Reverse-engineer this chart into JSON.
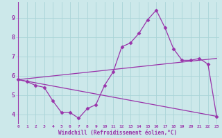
{
  "xlabel": "Windchill (Refroidissement éolien,°C)",
  "bg_color": "#cce8ea",
  "line_color": "#9933aa",
  "x_data": [
    0,
    1,
    2,
    3,
    4,
    5,
    6,
    7,
    8,
    9,
    10,
    11,
    12,
    13,
    14,
    15,
    16,
    17,
    18,
    19,
    20,
    21,
    22,
    23
  ],
  "y_main": [
    5.8,
    5.7,
    5.5,
    5.4,
    4.7,
    4.1,
    4.1,
    3.8,
    4.3,
    4.5,
    5.5,
    6.2,
    7.5,
    7.7,
    8.2,
    8.9,
    9.4,
    8.5,
    7.4,
    6.8,
    6.8,
    6.9,
    6.6,
    3.9
  ],
  "y_down_start": 5.8,
  "y_down_end": 3.9,
  "y_up_start": 5.8,
  "y_up_end": 6.9,
  "ylim": [
    3.5,
    9.8
  ],
  "xlim": [
    -0.3,
    23.3
  ],
  "yticks": [
    4,
    5,
    6,
    7,
    8,
    9
  ],
  "xticks": [
    0,
    1,
    2,
    3,
    4,
    5,
    6,
    7,
    8,
    9,
    10,
    11,
    12,
    13,
    14,
    15,
    16,
    17,
    18,
    19,
    20,
    21,
    22,
    23
  ],
  "grid_color": "#aad4d8",
  "marker": "D",
  "markersize": 2.5,
  "linewidth": 0.9
}
